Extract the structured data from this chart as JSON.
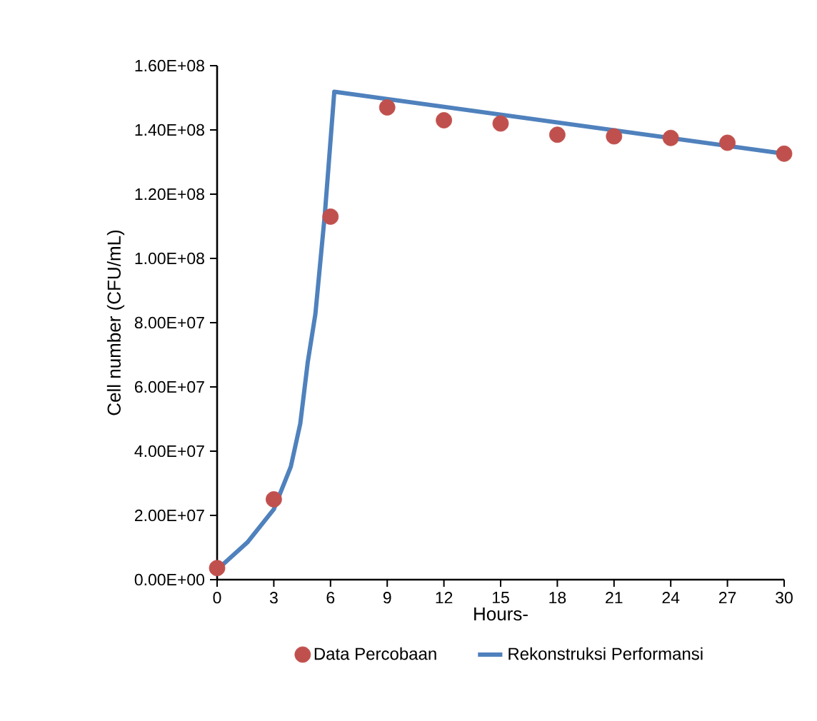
{
  "chart_data": {
    "type": "scatter",
    "xlabel": "Hours-",
    "ylabel": "Cell number (CFU/mL)",
    "xlim": [
      0,
      30
    ],
    "ylim": [
      0,
      160000000
    ],
    "xticks": [
      0,
      3,
      6,
      9,
      12,
      15,
      18,
      21,
      24,
      27,
      30
    ],
    "yticks": [
      {
        "value": 0,
        "label": "0.00E+00"
      },
      {
        "value": 20000000,
        "label": "2.00E+07"
      },
      {
        "value": 40000000,
        "label": "4.00E+07"
      },
      {
        "value": 60000000,
        "label": "6.00E+07"
      },
      {
        "value": 80000000,
        "label": "8.00E+07"
      },
      {
        "value": 100000000,
        "label": "1.00E+08"
      },
      {
        "value": 120000000,
        "label": "1.20E+08"
      },
      {
        "value": 140000000,
        "label": "1.40E+08"
      },
      {
        "value": 160000000,
        "label": "1.60E+08"
      }
    ],
    "legend": "bottom",
    "series": [
      {
        "name": "Data Percobaan",
        "marker": "circle",
        "color": "#c0504d",
        "x": [
          0,
          3,
          6,
          9,
          12,
          15,
          18,
          21,
          24,
          27,
          30
        ],
        "values": [
          3600000,
          25000000,
          113000000,
          147000000,
          143000000,
          142000000,
          138500000,
          138000000,
          137500000,
          136000000,
          132600000
        ]
      },
      {
        "name": "Rekonstruksi Performansi",
        "type": "line",
        "marker": "none",
        "line_style": "solid",
        "color": "#4f81bd",
        "x": [
          0,
          1.6,
          3.0,
          3.9,
          4.4,
          4.8,
          5.2,
          5.7,
          6.2,
          30
        ],
        "values": [
          3100000,
          11600000,
          21900000,
          35200000,
          48600000,
          67900000,
          82700000,
          113800000,
          151900000,
          132600000
        ]
      }
    ]
  }
}
